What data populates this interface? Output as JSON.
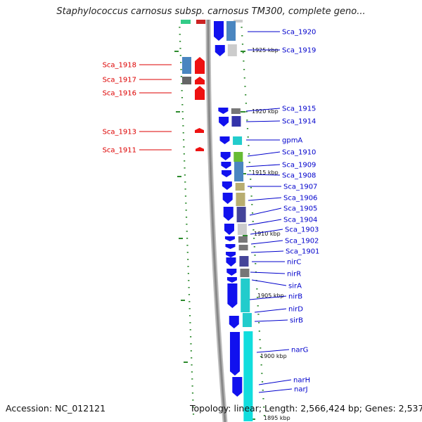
{
  "title": "Staphylococcus carnosus subsp. carnosus TM300, complete geno...",
  "footer": {
    "accession": "Accession: NC_012121",
    "summary": "Topology: linear; Length: 2,566,424 bp; Genes: 2,537"
  },
  "colors": {
    "label_left": "#dd0000",
    "label_right": "#0000cc",
    "backbone": "#888888",
    "tick": "#2e8b2e"
  },
  "kbp_labels": [
    "1925 kbp",
    "1920 kbp",
    "1915 kbp",
    "1910 kbp",
    "1905 kbp",
    "1900 kbp",
    "1895 kbp"
  ],
  "genes_left": [
    "Sca_1918",
    "Sca_1917",
    "Sca_1916",
    "Sca_1913",
    "Sca_1911"
  ],
  "genes_right": [
    "Sca_1920",
    "Sca_1919",
    "Sca_1915",
    "Sca_1914",
    "gpmA",
    "Sca_1910",
    "Sca_1909",
    "Sca_1908",
    "Sca_1907",
    "Sca_1906",
    "Sca_1905",
    "Sca_1904",
    "Sca_1903",
    "Sca_1902",
    "Sca_1901",
    "nirC",
    "nirR",
    "sirA",
    "nirB",
    "nirD",
    "sirB",
    "narG",
    "narH",
    "narJ"
  ]
}
